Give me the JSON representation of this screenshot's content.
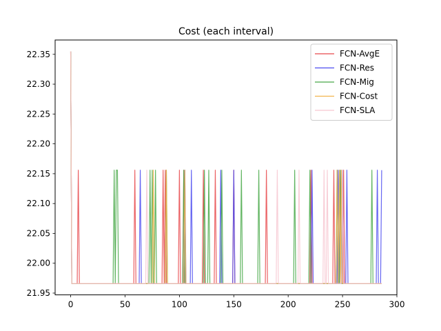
{
  "chart_data": {
    "type": "line",
    "title": "Cost  (each interval)",
    "xlabel": "",
    "ylabel": "",
    "xlim": [
      -14.3,
      300
    ],
    "ylim": [
      21.947,
      22.374
    ],
    "xticks": [
      0,
      50,
      100,
      150,
      200,
      250,
      300
    ],
    "yticks": [
      21.95,
      22.0,
      22.05,
      22.1,
      22.15,
      22.2,
      22.25,
      22.3,
      22.35
    ],
    "ytick_labels": [
      "21.95",
      "22.00",
      "22.05",
      "22.10",
      "22.15",
      "22.20",
      "22.25",
      "22.30",
      "22.35"
    ],
    "x_max": 286,
    "base_value": 21.966,
    "peak_value": 22.156,
    "start_value": 22.355,
    "legend_position": "upper-right",
    "grid": false,
    "series": [
      {
        "name": "FCN-AvgE",
        "color": "#e8474a",
        "spikes": [
          7,
          59,
          85,
          87,
          100,
          104,
          122,
          133,
          150,
          180,
          221,
          242,
          248,
          251
        ]
      },
      {
        "name": "FCN-Res",
        "color": "#4a4af0",
        "spikes": [
          64,
          105,
          111,
          138,
          150,
          222,
          246,
          250,
          254,
          282,
          286
        ]
      },
      {
        "name": "FCN-Mig",
        "color": "#47a847",
        "spikes": [
          40,
          42,
          43,
          73,
          75,
          78,
          88,
          104,
          123,
          127,
          139,
          157,
          173,
          206,
          220,
          245,
          248,
          277
        ]
      },
      {
        "name": "FCN-Cost",
        "color": "#f2b44c",
        "spikes": [
          76,
          88,
          105,
          245,
          247,
          249
        ]
      },
      {
        "name": "FCN-SLA",
        "color": "#f7c6d0",
        "spikes": [
          70,
          190,
          210,
          233,
          236,
          250
        ]
      }
    ]
  }
}
